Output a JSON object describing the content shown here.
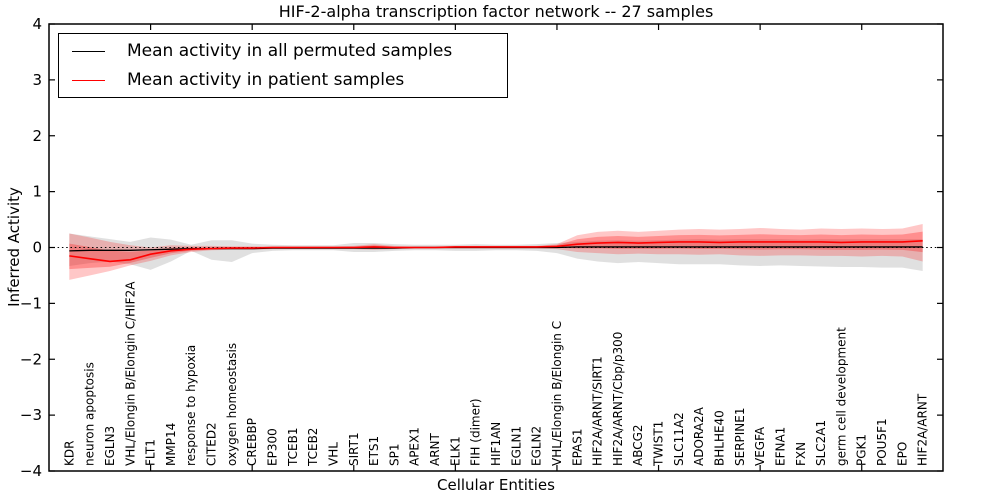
{
  "figure": {
    "title": "HIF-2-alpha transcription factor network -- 27 samples",
    "xlabel": "Cellular Entities",
    "ylabel": "Inferred Activity"
  },
  "legend": {
    "entries": [
      {
        "label": "Mean activity in all permuted samples",
        "color": "#000000"
      },
      {
        "label": "Mean activity in patient samples",
        "color": "#ff0000"
      }
    ]
  },
  "colors": {
    "patient_line": "#ff0000",
    "permuted_line": "#000000",
    "patient_band": "#ff0000",
    "permuted_band": "#a0a0a0",
    "background": "#ffffff",
    "axis": "#000000"
  },
  "chart_data": {
    "type": "line",
    "title": "HIF-2-alpha transcription factor network -- 27 samples",
    "xlabel": "Cellular Entities",
    "ylabel": "Inferred Activity",
    "ylim": [
      -4,
      4
    ],
    "xlim": [
      0,
      44
    ],
    "grid": false,
    "legend_position": "upper left",
    "zero_reference_line": {
      "y": 0,
      "style": "dotted",
      "color": "#000000"
    },
    "yticks": [
      {
        "value": 4,
        "label": "4"
      },
      {
        "value": 3,
        "label": "3"
      },
      {
        "value": 2,
        "label": "2"
      },
      {
        "value": 1,
        "label": "1"
      },
      {
        "value": 0,
        "label": "0"
      },
      {
        "value": -1,
        "label": "−1"
      },
      {
        "value": -2,
        "label": "−2"
      },
      {
        "value": -3,
        "label": "−3"
      },
      {
        "value": -4,
        "label": "−4"
      }
    ],
    "xticks_major": [
      5,
      10,
      15,
      20,
      25,
      30,
      35,
      40
    ],
    "categories": [
      "KDR",
      "neuron apoptosis",
      "EGLN3",
      "VHL/Elongin B/Elongin C/HIF2A",
      "FLT1",
      "MMP14",
      "response to hypoxia",
      "CITED2",
      "oxygen homeostasis",
      "CREBBP",
      "EP300",
      "TCEB1",
      "TCEB2",
      "VHL",
      "SIRT1",
      "ETS1",
      "SP1",
      "APEX1",
      "ARNT",
      "ELK1",
      "FIH (dimer)",
      "HIF1AN",
      "EGLN1",
      "EGLN2",
      "VHL/Elongin B/Elongin C",
      "EPAS1",
      "HIF2A/ARNT/SIRT1",
      "HIF2A/ARNT/Cbp/p300",
      "ABCG2",
      "TWIST1",
      "SLC11A2",
      "ADORA2A",
      "BHLHE40",
      "SERPINE1",
      "VEGFA",
      "EFNA1",
      "FXN",
      "SLC2A1",
      "germ cell development",
      "PGK1",
      "POU5F1",
      "EPO",
      "HIF2A/ARNT"
    ],
    "series": [
      {
        "name": "Mean activity in all permuted samples",
        "color": "#000000",
        "values": [
          -0.06,
          -0.05,
          -0.05,
          -0.05,
          -0.04,
          -0.03,
          -0.02,
          -0.02,
          -0.02,
          -0.02,
          -0.01,
          -0.01,
          -0.01,
          -0.01,
          -0.01,
          -0.01,
          -0.01,
          0,
          0,
          0,
          0,
          0,
          0,
          0,
          0,
          0.01,
          0.01,
          0.01,
          0.01,
          0.01,
          0.01,
          0.01,
          0.01,
          0.01,
          0.01,
          0.01,
          0.01,
          0.01,
          0.01,
          0.01,
          0.01,
          0.01,
          0.01
        ],
        "band_upper": [
          0.25,
          0.2,
          0.15,
          0.1,
          0.18,
          0.14,
          0.05,
          0.13,
          0.13,
          0.07,
          0.05,
          0.04,
          0.04,
          0.04,
          0.08,
          0.08,
          0.06,
          0.05,
          0.05,
          0.05,
          0.06,
          0.05,
          0.05,
          0.06,
          0.08,
          0.1,
          0.12,
          0.13,
          0.12,
          0.13,
          0.14,
          0.15,
          0.14,
          0.15,
          0.15,
          0.15,
          0.14,
          0.15,
          0.15,
          0.15,
          0.15,
          0.15,
          0.15
        ],
        "band_lower": [
          -0.33,
          -0.28,
          -0.25,
          -0.3,
          -0.4,
          -0.25,
          -0.06,
          -0.22,
          -0.26,
          -0.1,
          -0.06,
          -0.05,
          -0.05,
          -0.05,
          -0.08,
          -0.08,
          -0.06,
          -0.05,
          -0.05,
          -0.06,
          -0.06,
          -0.05,
          -0.05,
          -0.06,
          -0.1,
          -0.2,
          -0.25,
          -0.28,
          -0.26,
          -0.28,
          -0.3,
          -0.3,
          -0.3,
          -0.32,
          -0.33,
          -0.32,
          -0.33,
          -0.34,
          -0.35,
          -0.35,
          -0.36,
          -0.36,
          -0.42
        ],
        "band_color": "#a0a0a0",
        "band_opacity": 0.32
      },
      {
        "name": "Mean activity in patient samples",
        "color": "#ff0000",
        "values": [
          -0.15,
          -0.2,
          -0.25,
          -0.22,
          -0.12,
          -0.06,
          -0.03,
          -0.02,
          -0.01,
          -0.01,
          0,
          0,
          0,
          0,
          0,
          0.01,
          0,
          0,
          0,
          0.01,
          0.01,
          0.01,
          0.01,
          0.01,
          0.02,
          0.06,
          0.08,
          0.09,
          0.08,
          0.09,
          0.1,
          0.1,
          0.09,
          0.1,
          0.1,
          0.1,
          0.1,
          0.1,
          0.09,
          0.1,
          0.1,
          0.1,
          0.12
        ],
        "band_upper": [
          0.25,
          0.18,
          0.1,
          0.04,
          0.0,
          0.04,
          0.03,
          0.03,
          0.02,
          0.02,
          0.02,
          0.02,
          0.02,
          0.02,
          0.03,
          0.06,
          0.03,
          0.02,
          0.02,
          0.03,
          0.03,
          0.03,
          0.03,
          0.03,
          0.06,
          0.22,
          0.28,
          0.3,
          0.28,
          0.3,
          0.32,
          0.33,
          0.32,
          0.33,
          0.35,
          0.33,
          0.32,
          0.34,
          0.33,
          0.34,
          0.33,
          0.34,
          0.42
        ],
        "band_lower": [
          -0.58,
          -0.5,
          -0.42,
          -0.32,
          -0.24,
          -0.14,
          -0.08,
          -0.05,
          -0.04,
          -0.04,
          -0.03,
          -0.03,
          -0.03,
          -0.03,
          -0.03,
          -0.04,
          -0.03,
          -0.02,
          -0.02,
          -0.02,
          -0.02,
          -0.02,
          -0.02,
          -0.02,
          -0.03,
          -0.08,
          -0.1,
          -0.12,
          -0.11,
          -0.12,
          -0.12,
          -0.13,
          -0.12,
          -0.14,
          -0.15,
          -0.14,
          -0.14,
          -0.15,
          -0.15,
          -0.16,
          -0.15,
          -0.16,
          -0.25
        ],
        "band_color": "#ff0000",
        "band_opacity": 0.22,
        "inner_band_factor": 0.55,
        "inner_band_opacity": 0.28
      }
    ]
  }
}
